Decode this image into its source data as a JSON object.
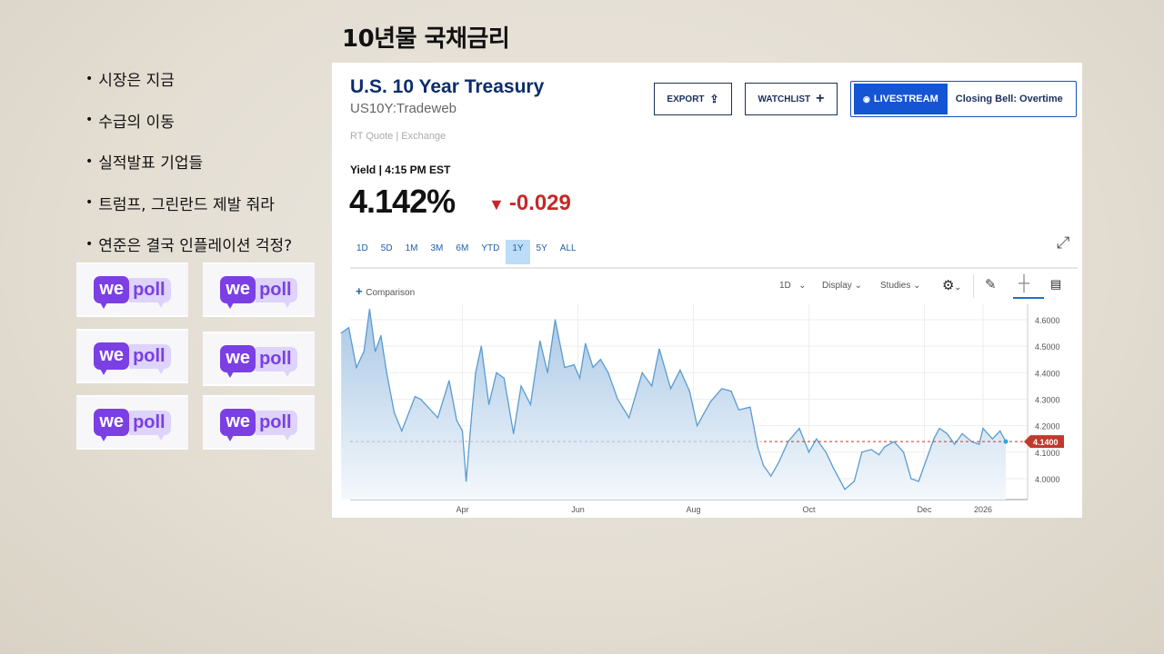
{
  "slide": {
    "title": "10년물 국채금리",
    "bullets": [
      "시장은 지금",
      "수급의 이동",
      "실적발표 기업들",
      "트럼프, 그린란드 제발 줘라",
      "연준은 결국 인플레이션 걱정?"
    ],
    "logo": {
      "we": "we",
      "poll": "poll",
      "color": "#7b3fe4"
    }
  },
  "quote": {
    "name": "U.S. 10 Year Treasury",
    "symbol": "US10Y:Tradeweb",
    "source": "RT Quote | Exchange",
    "yield_label": "Yield | 4:15 PM EST",
    "price": "4.142%",
    "change": "-0.029",
    "change_color": "#c62828",
    "buttons": {
      "export": "EXPORT",
      "watchlist": "WATCHLIST",
      "livestream": "LIVESTREAM",
      "live_show": "Closing Bell: Overtime"
    },
    "ranges": [
      "1D",
      "5D",
      "1M",
      "3M",
      "6M",
      "YTD",
      "1Y",
      "5Y",
      "ALL"
    ],
    "active_range": "1Y",
    "toolbar": {
      "comparison": "Comparison",
      "interval": "1D",
      "display": "Display",
      "studies": "Studies"
    }
  },
  "chart_data": {
    "type": "area",
    "title": "",
    "xlabel": "",
    "ylabel": "",
    "ylim": [
      3.93,
      4.66
    ],
    "grid": true,
    "y_ticks": [
      "4.6000",
      "4.5000",
      "4.4000",
      "4.3000",
      "4.2000",
      "4.1000",
      "4.0000"
    ],
    "x_ticks": [
      {
        "label": "Apr",
        "date": "2025-04-01"
      },
      {
        "label": "Jun",
        "date": "2025-06-01"
      },
      {
        "label": "Aug",
        "date": "2025-08-01"
      },
      {
        "label": "Oct",
        "date": "2025-10-01"
      },
      {
        "label": "Dec",
        "date": "2025-12-01"
      },
      {
        "label": "2026",
        "date": "2026-01-01"
      }
    ],
    "last_value_label": "4.1400",
    "last_value": 4.14,
    "line_color": "#5a9bd0",
    "tag_color": "#c0392b",
    "points": [
      [
        "2025-01-27",
        4.55
      ],
      [
        "2025-01-31",
        4.57
      ],
      [
        "2025-02-04",
        4.42
      ],
      [
        "2025-02-08",
        4.48
      ],
      [
        "2025-02-11",
        4.64
      ],
      [
        "2025-02-14",
        4.48
      ],
      [
        "2025-02-17",
        4.54
      ],
      [
        "2025-02-20",
        4.4
      ],
      [
        "2025-02-24",
        4.25
      ],
      [
        "2025-02-28",
        4.18
      ],
      [
        "2025-03-07",
        4.31
      ],
      [
        "2025-03-10",
        4.3
      ],
      [
        "2025-03-19",
        4.23
      ],
      [
        "2025-03-25",
        4.37
      ],
      [
        "2025-03-29",
        4.22
      ],
      [
        "2025-04-01",
        4.18
      ],
      [
        "2025-04-03",
        3.99
      ],
      [
        "2025-04-06",
        4.25
      ],
      [
        "2025-04-08",
        4.4
      ],
      [
        "2025-04-11",
        4.5
      ],
      [
        "2025-04-15",
        4.28
      ],
      [
        "2025-04-19",
        4.4
      ],
      [
        "2025-04-23",
        4.38
      ],
      [
        "2025-04-28",
        4.17
      ],
      [
        "2025-05-02",
        4.35
      ],
      [
        "2025-05-07",
        4.28
      ],
      [
        "2025-05-12",
        4.52
      ],
      [
        "2025-05-16",
        4.4
      ],
      [
        "2025-05-20",
        4.6
      ],
      [
        "2025-05-25",
        4.42
      ],
      [
        "2025-05-30",
        4.43
      ],
      [
        "2025-06-02",
        4.38
      ],
      [
        "2025-06-05",
        4.51
      ],
      [
        "2025-06-09",
        4.42
      ],
      [
        "2025-06-13",
        4.45
      ],
      [
        "2025-06-17",
        4.4
      ],
      [
        "2025-06-22",
        4.3
      ],
      [
        "2025-06-28",
        4.23
      ],
      [
        "2025-07-05",
        4.4
      ],
      [
        "2025-07-10",
        4.35
      ],
      [
        "2025-07-14",
        4.49
      ],
      [
        "2025-07-20",
        4.34
      ],
      [
        "2025-07-25",
        4.41
      ],
      [
        "2025-07-30",
        4.33
      ],
      [
        "2025-08-03",
        4.2
      ],
      [
        "2025-08-10",
        4.29
      ],
      [
        "2025-08-16",
        4.34
      ],
      [
        "2025-08-21",
        4.33
      ],
      [
        "2025-08-25",
        4.26
      ],
      [
        "2025-08-31",
        4.27
      ],
      [
        "2025-09-04",
        4.12
      ],
      [
        "2025-09-07",
        4.05
      ],
      [
        "2025-09-11",
        4.01
      ],
      [
        "2025-09-15",
        4.06
      ],
      [
        "2025-09-20",
        4.14
      ],
      [
        "2025-09-26",
        4.19
      ],
      [
        "2025-10-01",
        4.1
      ],
      [
        "2025-10-05",
        4.15
      ],
      [
        "2025-10-10",
        4.1
      ],
      [
        "2025-10-14",
        4.04
      ],
      [
        "2025-10-20",
        3.96
      ],
      [
        "2025-10-25",
        3.99
      ],
      [
        "2025-10-29",
        4.1
      ],
      [
        "2025-11-03",
        4.11
      ],
      [
        "2025-11-07",
        4.09
      ],
      [
        "2025-11-10",
        4.12
      ],
      [
        "2025-11-15",
        4.14
      ],
      [
        "2025-11-20",
        4.1
      ],
      [
        "2025-11-24",
        4.0
      ],
      [
        "2025-11-28",
        3.99
      ],
      [
        "2025-12-02",
        4.07
      ],
      [
        "2025-12-06",
        4.15
      ],
      [
        "2025-12-09",
        4.19
      ],
      [
        "2025-12-13",
        4.17
      ],
      [
        "2025-12-17",
        4.13
      ],
      [
        "2025-12-21",
        4.17
      ],
      [
        "2025-12-26",
        4.14
      ],
      [
        "2025-12-30",
        4.13
      ],
      [
        "2026-01-01",
        4.19
      ],
      [
        "2026-01-06",
        4.15
      ],
      [
        "2026-01-10",
        4.18
      ],
      [
        "2026-01-13",
        4.14
      ]
    ]
  }
}
